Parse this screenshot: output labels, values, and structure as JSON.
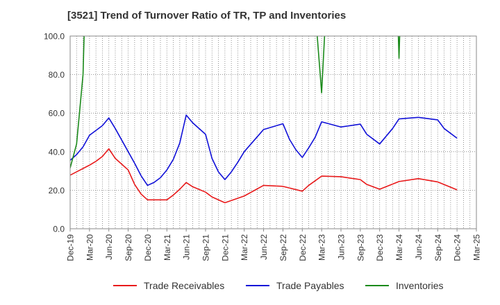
{
  "chart_data": {
    "type": "line",
    "title": "[3521]  Trend of Turnover Ratio of TR, TP and Inventories",
    "xlabel": "",
    "ylabel": "",
    "ylim": [
      0,
      100
    ],
    "yticks": [
      "0.0",
      "20.0",
      "40.0",
      "60.0",
      "80.0",
      "100.0"
    ],
    "xlim": [
      "2019-12",
      "2025-03"
    ],
    "xticks": [
      "Dec-19",
      "Mar-20",
      "Jun-20",
      "Sep-20",
      "Dec-20",
      "Mar-21",
      "Jun-21",
      "Sep-21",
      "Dec-21",
      "Mar-22",
      "Jun-22",
      "Sep-22",
      "Dec-22",
      "Mar-23",
      "Jun-23",
      "Sep-23",
      "Dec-23",
      "Mar-24",
      "Jun-24",
      "Sep-24",
      "Dec-24",
      "Mar-25"
    ],
    "grid": true,
    "legend_position": "bottom",
    "series": [
      {
        "name": "Trade Receivables",
        "color": "#e8191a",
        "points": [
          [
            "2019-12",
            27.8
          ],
          [
            "2020-03",
            33.0
          ],
          [
            "2020-04",
            35.0
          ],
          [
            "2020-05",
            37.5
          ],
          [
            "2020-06",
            41.5
          ],
          [
            "2020-07",
            36.5
          ],
          [
            "2020-09",
            30.5
          ],
          [
            "2020-10",
            23.0
          ],
          [
            "2020-11",
            18.0
          ],
          [
            "2020-12",
            15.0
          ],
          [
            "2021-03",
            15.0
          ],
          [
            "2021-04",
            17.5
          ],
          [
            "2021-05",
            20.5
          ],
          [
            "2021-06",
            24.0
          ],
          [
            "2021-07",
            21.8
          ],
          [
            "2021-09",
            19.0
          ],
          [
            "2021-10",
            16.5
          ],
          [
            "2021-12",
            13.5
          ],
          [
            "2022-03",
            17.0
          ],
          [
            "2022-06",
            22.5
          ],
          [
            "2022-09",
            22.0
          ],
          [
            "2022-12",
            19.5
          ],
          [
            "2023-01",
            22.5
          ],
          [
            "2023-03",
            27.3
          ],
          [
            "2023-06",
            27.0
          ],
          [
            "2023-09",
            25.5
          ],
          [
            "2023-10",
            23.0
          ],
          [
            "2023-12",
            20.5
          ],
          [
            "2024-03",
            24.5
          ],
          [
            "2024-06",
            26.0
          ],
          [
            "2024-09",
            24.3
          ],
          [
            "2024-12",
            20.2
          ]
        ]
      },
      {
        "name": "Trade Payables",
        "color": "#1010d8",
        "points": [
          [
            "2019-12",
            35.5
          ],
          [
            "2020-01",
            38.5
          ],
          [
            "2020-02",
            42.5
          ],
          [
            "2020-03",
            48.5
          ],
          [
            "2020-05",
            53.5
          ],
          [
            "2020-06",
            57.5
          ],
          [
            "2020-07",
            52.0
          ],
          [
            "2020-09",
            40.0
          ],
          [
            "2020-10",
            34.0
          ],
          [
            "2020-11",
            27.5
          ],
          [
            "2020-12",
            22.5
          ],
          [
            "2021-01",
            24.0
          ],
          [
            "2021-02",
            26.5
          ],
          [
            "2021-03",
            30.5
          ],
          [
            "2021-04",
            36.0
          ],
          [
            "2021-05",
            44.5
          ],
          [
            "2021-06",
            59.0
          ],
          [
            "2021-07",
            55.0
          ],
          [
            "2021-09",
            49.0
          ],
          [
            "2021-10",
            36.5
          ],
          [
            "2021-11",
            29.5
          ],
          [
            "2021-12",
            25.5
          ],
          [
            "2022-01",
            29.5
          ],
          [
            "2022-02",
            34.5
          ],
          [
            "2022-03",
            40.0
          ],
          [
            "2022-06",
            51.5
          ],
          [
            "2022-09",
            54.5
          ],
          [
            "2022-10",
            46.5
          ],
          [
            "2022-11",
            41.0
          ],
          [
            "2022-12",
            37.0
          ],
          [
            "2023-01",
            42.0
          ],
          [
            "2023-02",
            47.5
          ],
          [
            "2023-03",
            55.5
          ],
          [
            "2023-06",
            52.8
          ],
          [
            "2023-09",
            54.3
          ],
          [
            "2023-10",
            49.0
          ],
          [
            "2023-12",
            44.0
          ],
          [
            "2024-01",
            48.0
          ],
          [
            "2024-02",
            52.0
          ],
          [
            "2024-03",
            57.0
          ],
          [
            "2024-06",
            57.8
          ],
          [
            "2024-09",
            56.5
          ],
          [
            "2024-10",
            52.0
          ],
          [
            "2024-12",
            47.0
          ]
        ]
      },
      {
        "name": "Inventories",
        "color": "#1a8a1a",
        "points": [
          [
            "2019-12",
            31.5
          ],
          [
            "2020-01",
            44.0
          ],
          [
            "2020-02",
            80.0
          ],
          [
            "2020-03",
            200.0
          ],
          null,
          [
            "2022-12",
            200.0
          ],
          [
            "2023-03",
            70.5
          ],
          [
            "2023-05",
            200.0
          ],
          null,
          [
            "2024-02",
            200.0
          ],
          [
            "2024-03",
            88.5
          ],
          [
            "2024-04",
            200.0
          ]
        ]
      }
    ]
  }
}
